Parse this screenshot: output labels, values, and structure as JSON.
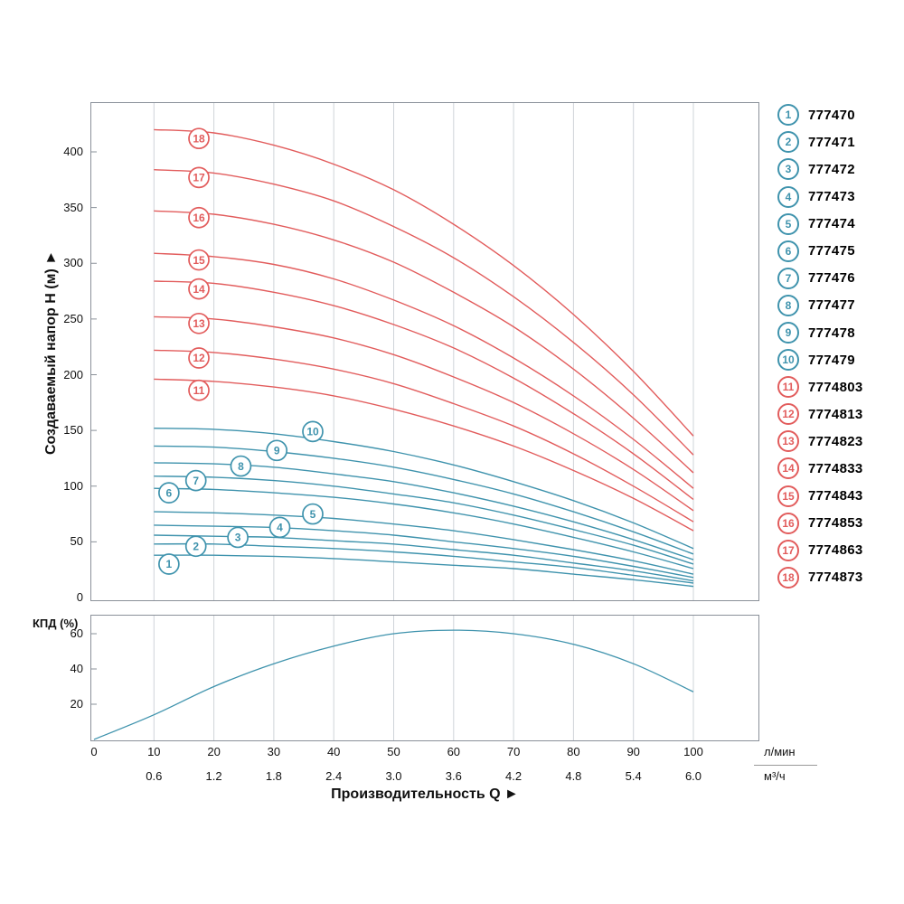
{
  "colors": {
    "blue": "#3f93ad",
    "red": "#e25c5c",
    "grid": "#cfd4d9",
    "border": "#8a9099",
    "text": "#111111"
  },
  "labels": {
    "head_ylabel": "Создаваемый напор H (м) ►",
    "eff_ylabel": "КПД (%)",
    "unit_lmin": "л/мин",
    "unit_m3h": "м³/ч",
    "x_title": "Производительность Q ►"
  },
  "x_axis": {
    "lmin_ticks": [
      0,
      10,
      20,
      30,
      40,
      50,
      60,
      70,
      80,
      90,
      100
    ],
    "m3h_ticks": [
      "0.6",
      "1.2",
      "1.8",
      "2.4",
      "3.0",
      "3.6",
      "4.2",
      "4.8",
      "5.4",
      "6.0"
    ],
    "title": "Производительность Q"
  },
  "chart_data": [
    {
      "type": "line",
      "title": "Pump head curves H(Q)",
      "ylabel": "Создаваемый напор H (м)",
      "xlabel": "Производительность Q, л/мин",
      "yticks": [
        0,
        50,
        100,
        150,
        200,
        250,
        300,
        350,
        400
      ],
      "ylim": [
        0,
        445
      ],
      "xlim": [
        0,
        111
      ],
      "grid": "vertical",
      "legend_position": "right",
      "x": [
        10,
        20,
        30,
        40,
        50,
        60,
        70,
        80,
        90,
        100
      ],
      "series": [
        {
          "name": "1",
          "model": "777470",
          "group": "blue",
          "label_at": [
            12.5,
            30
          ],
          "values": [
            38,
            38,
            37,
            35,
            32,
            29,
            26,
            21,
            16,
            10
          ]
        },
        {
          "name": "2",
          "model": "777471",
          "group": "blue",
          "label_at": [
            17,
            46
          ],
          "values": [
            48,
            48,
            46,
            44,
            41,
            37,
            32,
            27,
            20,
            13
          ]
        },
        {
          "name": "3",
          "model": "777472",
          "group": "blue",
          "label_at": [
            24,
            54
          ],
          "values": [
            56,
            55,
            54,
            51,
            48,
            43,
            38,
            31,
            24,
            15
          ]
        },
        {
          "name": "4",
          "model": "777473",
          "group": "blue",
          "label_at": [
            31,
            63
          ],
          "values": [
            65,
            64,
            63,
            60,
            56,
            50,
            44,
            37,
            28,
            18
          ]
        },
        {
          "name": "5",
          "model": "777474",
          "group": "blue",
          "label_at": [
            36.5,
            75
          ],
          "values": [
            77,
            76,
            74,
            71,
            66,
            60,
            52,
            43,
            33,
            21
          ]
        },
        {
          "name": "6",
          "model": "777475",
          "group": "blue",
          "label_at": [
            12.5,
            94
          ],
          "values": [
            98,
            97,
            94,
            90,
            84,
            76,
            66,
            54,
            41,
            26
          ]
        },
        {
          "name": "7",
          "model": "777476",
          "group": "blue",
          "label_at": [
            17,
            105
          ],
          "values": [
            109,
            108,
            105,
            100,
            93,
            85,
            74,
            61,
            47,
            30
          ]
        },
        {
          "name": "8",
          "model": "777477",
          "group": "blue",
          "label_at": [
            24.5,
            118
          ],
          "values": [
            121,
            120,
            117,
            111,
            104,
            94,
            82,
            68,
            52,
            34
          ]
        },
        {
          "name": "9",
          "model": "777478",
          "group": "blue",
          "label_at": [
            30.5,
            132
          ],
          "values": [
            136,
            135,
            131,
            125,
            117,
            106,
            93,
            77,
            59,
            39
          ]
        },
        {
          "name": "10",
          "model": "777479",
          "group": "blue",
          "label_at": [
            36.5,
            149
          ],
          "values": [
            152,
            151,
            147,
            140,
            131,
            119,
            104,
            87,
            67,
            44
          ]
        },
        {
          "name": "11",
          "model": "7774803",
          "group": "red",
          "label_at": [
            17.5,
            186
          ],
          "values": [
            196,
            194,
            189,
            181,
            169,
            154,
            136,
            114,
            89,
            60
          ]
        },
        {
          "name": "12",
          "model": "7774813",
          "group": "red",
          "label_at": [
            17.5,
            215
          ],
          "values": [
            222,
            220,
            214,
            205,
            192,
            174,
            154,
            129,
            100,
            68
          ]
        },
        {
          "name": "13",
          "model": "7774823",
          "group": "red",
          "label_at": [
            17.5,
            246
          ],
          "values": [
            252,
            250,
            243,
            233,
            218,
            198,
            175,
            147,
            115,
            78
          ]
        },
        {
          "name": "14",
          "model": "7774833",
          "group": "red",
          "label_at": [
            17.5,
            277
          ],
          "values": [
            284,
            282,
            274,
            262,
            245,
            224,
            197,
            165,
            129,
            88
          ]
        },
        {
          "name": "15",
          "model": "7774843",
          "group": "red",
          "label_at": [
            17.5,
            303
          ],
          "values": [
            309,
            306,
            299,
            286,
            267,
            244,
            215,
            181,
            142,
            98
          ]
        },
        {
          "name": "16",
          "model": "7774853",
          "group": "red",
          "label_at": [
            17.5,
            341
          ],
          "values": [
            347,
            344,
            335,
            321,
            301,
            274,
            243,
            205,
            161,
            112
          ]
        },
        {
          "name": "17",
          "model": "7774863",
          "group": "red",
          "label_at": [
            17.5,
            377
          ],
          "values": [
            384,
            381,
            371,
            356,
            333,
            305,
            270,
            229,
            182,
            128
          ]
        },
        {
          "name": "18",
          "model": "7774873",
          "group": "red",
          "label_at": [
            17.5,
            412
          ],
          "values": [
            420,
            417,
            406,
            389,
            366,
            335,
            298,
            254,
            203,
            145
          ]
        }
      ]
    },
    {
      "type": "line",
      "title": "Efficiency curve",
      "ylabel": "КПД (%)",
      "xlabel": "Производительность Q, л/мин",
      "yticks": [
        20,
        40,
        60
      ],
      "ylim": [
        0,
        72
      ],
      "xlim": [
        0,
        111
      ],
      "grid": "vertical",
      "x": [
        0,
        10,
        20,
        30,
        40,
        50,
        60,
        70,
        80,
        90,
        100
      ],
      "series": [
        {
          "name": "КПД",
          "group": "blue",
          "values": [
            0,
            14,
            30,
            43,
            53,
            60,
            62,
            60,
            54,
            43,
            27
          ]
        }
      ]
    }
  ]
}
